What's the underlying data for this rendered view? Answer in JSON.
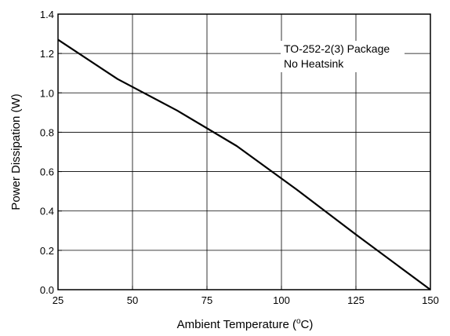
{
  "chart_data": {
    "type": "line",
    "title": "",
    "xlabel": "Ambient Temperature (°C)",
    "xlabel_parts": {
      "prefix": "Ambient Temperature (",
      "superscript": "o",
      "suffix": "C)"
    },
    "ylabel": "Power Dissipation (W)",
    "xlim": [
      25,
      150
    ],
    "ylim": [
      0.0,
      1.4
    ],
    "xticks": [
      25,
      50,
      75,
      100,
      125,
      150
    ],
    "xtick_labels": [
      "25",
      "50",
      "75",
      "100",
      "125",
      "150"
    ],
    "yticks": [
      0.0,
      0.2,
      0.4,
      0.6,
      0.8,
      1.0,
      1.2,
      1.4
    ],
    "ytick_labels": [
      "0.0",
      "0.2",
      "0.4",
      "0.6",
      "0.8",
      "1.0",
      "1.2",
      "1.4"
    ],
    "grid": true,
    "annotation": [
      "TO-252-2(3) Package",
      "No Heatsink"
    ],
    "series": [
      {
        "x": [
          25,
          45,
          65,
          85,
          105,
          125,
          150
        ],
        "values": [
          1.27,
          1.07,
          0.91,
          0.73,
          0.51,
          0.28,
          0.0
        ]
      }
    ],
    "colors": {
      "line": "#000000",
      "grid": "#000000",
      "background": "#ffffff"
    }
  }
}
